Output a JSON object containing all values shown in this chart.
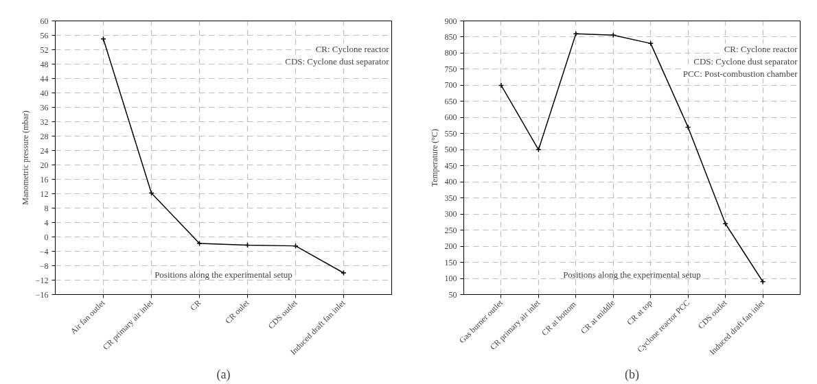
{
  "chart_data": [
    {
      "type": "line",
      "title": "(a)",
      "xlabel": "Positions along the experimental setup",
      "ylabel": "Manometric pressure (mbar)",
      "categories": [
        "Air fan outlet",
        "CR primary air inlet",
        "CR",
        "CR oulet",
        "CDS outlet",
        "Induced draft fan inlet"
      ],
      "series": [
        {
          "color": "#000000",
          "values": [
            55,
            12.2,
            -1.8,
            -2.3,
            -2.5,
            -10
          ]
        }
      ],
      "ylim": [
        -16,
        60
      ],
      "yticks": [
        -16,
        -12,
        -8,
        -4,
        0,
        4,
        8,
        12,
        16,
        20,
        24,
        28,
        32,
        36,
        40,
        44,
        48,
        52,
        56,
        60
      ],
      "annotations": [
        "CR: Cyclone reactor",
        "CDS: Cyclone dust separator"
      ],
      "grid": true,
      "marker": "cross",
      "line_style": "solid"
    },
    {
      "type": "line",
      "title": "(b)",
      "xlabel": "Positions along the experimental setup",
      "ylabel": "Temperature (°C)",
      "categories": [
        "Gas burner outlet",
        "CR primary air inlet",
        "CR at  bottom",
        "CR at middle",
        "CR at top",
        "Cyclone reactor PCC",
        "CDS outlet",
        "Induced draft fan inlet"
      ],
      "series": [
        {
          "color": "#000000",
          "values": [
            700,
            500,
            860,
            856,
            830,
            570,
            270,
            90
          ]
        }
      ],
      "ylim": [
        50,
        900
      ],
      "yticks": [
        50,
        100,
        150,
        200,
        250,
        300,
        350,
        400,
        450,
        500,
        550,
        600,
        650,
        700,
        750,
        800,
        850,
        900
      ],
      "annotations": [
        "CR: Cyclone reactor",
        "CDS: Cyclone dust separator",
        "PCC: Post-combustion chamber"
      ],
      "grid": true,
      "marker": "cross",
      "line_style": "solid"
    }
  ]
}
